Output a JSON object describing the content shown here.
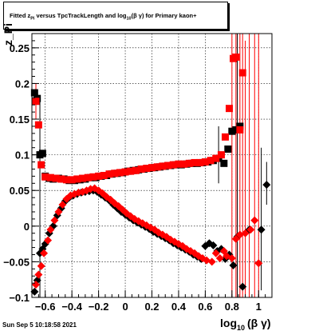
{
  "title": {
    "prefix": "Fitted  z",
    "sub1": "Pi",
    "middle": "  versus TpcTrackLength and log",
    "sub2": "10",
    "suffix": "(β  γ) for Primary kaon+"
  },
  "timestamp": "Sun Sep  5 10:18:58 2021",
  "x_axis_title": {
    "main": "log",
    "sub": "10",
    "rest": "(β γ)"
  },
  "y_axis_corner_label": "z_Pi",
  "chart_data": {
    "type": "scatter",
    "title": "Fitted z_Pi versus TpcTrackLength and log10(β γ) for Primary kaon+",
    "xlabel": "log10(β γ)",
    "ylabel": "",
    "xlim": [
      -0.7,
      1.1
    ],
    "ylim": [
      -0.1,
      0.27
    ],
    "grid": true,
    "x_ticks": [
      -0.6,
      -0.4,
      -0.2,
      0,
      0.2,
      0.4,
      0.6,
      0.8,
      1
    ],
    "x_tick_labels": [
      "−0.6",
      "−0.4",
      "−0.2",
      "0",
      "0.2",
      "0.4",
      "0.6",
      "0.8",
      "1"
    ],
    "y_ticks": [
      -0.1,
      -0.05,
      0,
      0.05,
      0.1,
      0.15,
      0.2,
      0.25
    ],
    "y_tick_labels": [
      "−0.1",
      "−0.05",
      "0",
      "0.05",
      "0.1",
      "0.15",
      "0.2",
      "0.25"
    ],
    "series": [
      {
        "color": "#000000",
        "marker": "square",
        "points": [
          [
            -0.68,
            0.187
          ],
          [
            -0.66,
            0.179
          ],
          [
            -0.64,
            0.1
          ],
          [
            -0.62,
            0.102
          ],
          [
            -0.6,
            0.07
          ],
          [
            -0.57,
            0.067
          ],
          [
            -0.54,
            0.066
          ],
          [
            -0.5,
            0.067
          ],
          [
            -0.46,
            0.066
          ],
          [
            -0.42,
            0.064
          ],
          [
            -0.38,
            0.064
          ],
          [
            -0.34,
            0.065
          ],
          [
            -0.3,
            0.066
          ],
          [
            -0.26,
            0.068
          ],
          [
            -0.22,
            0.068
          ],
          [
            -0.18,
            0.07
          ],
          [
            -0.14,
            0.071
          ],
          [
            -0.1,
            0.073
          ],
          [
            -0.06,
            0.074
          ],
          [
            -0.02,
            0.075
          ],
          [
            0.02,
            0.077
          ],
          [
            0.06,
            0.078
          ],
          [
            0.1,
            0.079
          ],
          [
            0.14,
            0.08
          ],
          [
            0.18,
            0.081
          ],
          [
            0.22,
            0.082
          ],
          [
            0.26,
            0.083
          ],
          [
            0.3,
            0.084
          ],
          [
            0.34,
            0.085
          ],
          [
            0.38,
            0.086
          ],
          [
            0.42,
            0.086
          ],
          [
            0.46,
            0.087
          ],
          [
            0.5,
            0.088
          ],
          [
            0.54,
            0.088
          ],
          [
            0.58,
            0.089
          ],
          [
            0.62,
            0.09
          ],
          [
            0.66,
            0.092
          ],
          [
            0.7,
            0.095
          ],
          [
            0.74,
            0.088
          ],
          [
            0.77,
            0.108
          ],
          [
            0.8,
            0.133
          ],
          [
            0.83,
            0.135
          ],
          [
            0.86,
            0.14
          ]
        ]
      },
      {
        "color": "#ff0000",
        "marker": "square",
        "points": [
          [
            -0.67,
            0.175
          ],
          [
            -0.65,
            0.142
          ],
          [
            -0.63,
            0.086
          ],
          [
            -0.6,
            0.069
          ],
          [
            -0.56,
            0.068
          ],
          [
            -0.52,
            0.067
          ],
          [
            -0.48,
            0.066
          ],
          [
            -0.44,
            0.065
          ],
          [
            -0.4,
            0.065
          ],
          [
            -0.36,
            0.066
          ],
          [
            -0.32,
            0.067
          ],
          [
            -0.28,
            0.068
          ],
          [
            -0.24,
            0.069
          ],
          [
            -0.2,
            0.07
          ],
          [
            -0.16,
            0.071
          ],
          [
            -0.12,
            0.073
          ],
          [
            -0.08,
            0.074
          ],
          [
            -0.04,
            0.075
          ],
          [
            0.0,
            0.076
          ],
          [
            0.04,
            0.077
          ],
          [
            0.08,
            0.078
          ],
          [
            0.12,
            0.08
          ],
          [
            0.16,
            0.081
          ],
          [
            0.2,
            0.082
          ],
          [
            0.24,
            0.083
          ],
          [
            0.28,
            0.084
          ],
          [
            0.32,
            0.085
          ],
          [
            0.36,
            0.086
          ],
          [
            0.4,
            0.087
          ],
          [
            0.44,
            0.087
          ],
          [
            0.48,
            0.088
          ],
          [
            0.52,
            0.089
          ],
          [
            0.56,
            0.089
          ],
          [
            0.6,
            0.09
          ],
          [
            0.64,
            0.092
          ],
          [
            0.68,
            0.095
          ],
          [
            0.72,
            0.1
          ],
          [
            0.75,
            0.125
          ],
          [
            0.78,
            0.165
          ],
          [
            0.81,
            0.235
          ],
          [
            0.83,
            0.237
          ],
          [
            0.86,
            0.135
          ],
          [
            0.88,
            0.215
          ]
        ]
      },
      {
        "color": "#000000",
        "marker": "diamond",
        "points": [
          [
            -0.68,
            -0.092
          ],
          [
            -0.66,
            -0.076
          ],
          [
            -0.64,
            -0.038
          ],
          [
            -0.62,
            -0.032
          ],
          [
            -0.6,
            -0.025
          ],
          [
            -0.57,
            -0.01
          ],
          [
            -0.54,
            0.0
          ],
          [
            -0.51,
            0.015
          ],
          [
            -0.48,
            0.025
          ],
          [
            -0.45,
            0.035
          ],
          [
            -0.42,
            0.04
          ],
          [
            -0.39,
            0.043
          ],
          [
            -0.36,
            0.045
          ],
          [
            -0.33,
            0.047
          ],
          [
            -0.3,
            0.048
          ],
          [
            -0.27,
            0.049
          ],
          [
            -0.24,
            0.05
          ],
          [
            -0.21,
            0.048
          ],
          [
            -0.18,
            0.044
          ],
          [
            -0.15,
            0.04
          ],
          [
            -0.12,
            0.036
          ],
          [
            -0.09,
            0.03
          ],
          [
            -0.06,
            0.025
          ],
          [
            -0.03,
            0.02
          ],
          [
            0.0,
            0.016
          ],
          [
            0.03,
            0.012
          ],
          [
            0.06,
            0.008
          ],
          [
            0.09,
            0.005
          ],
          [
            0.12,
            0.002
          ],
          [
            0.15,
            -0.001
          ],
          [
            0.18,
            -0.004
          ],
          [
            0.21,
            -0.008
          ],
          [
            0.24,
            -0.011
          ],
          [
            0.27,
            -0.014
          ],
          [
            0.3,
            -0.017
          ],
          [
            0.33,
            -0.02
          ],
          [
            0.36,
            -0.024
          ],
          [
            0.39,
            -0.027
          ],
          [
            0.42,
            -0.03
          ],
          [
            0.45,
            -0.033
          ],
          [
            0.48,
            -0.036
          ],
          [
            0.51,
            -0.04
          ],
          [
            0.54,
            -0.043
          ],
          [
            0.57,
            -0.046
          ],
          [
            0.6,
            -0.028
          ],
          [
            0.63,
            -0.024
          ],
          [
            0.66,
            -0.027
          ],
          [
            0.69,
            -0.035
          ],
          [
            0.72,
            -0.032
          ],
          [
            0.75,
            -0.046
          ],
          [
            0.78,
            -0.04
          ],
          [
            0.81,
            -0.055
          ],
          [
            0.84,
            -0.015
          ],
          [
            0.88,
            -0.085
          ],
          [
            0.93,
            -0.005
          ],
          [
            1.02,
            -0.005
          ],
          [
            1.06,
            0.058
          ]
        ]
      },
      {
        "color": "#ff0000",
        "marker": "diamond",
        "points": [
          [
            -0.67,
            -0.082
          ],
          [
            -0.65,
            -0.068
          ],
          [
            -0.63,
            -0.056
          ],
          [
            -0.61,
            -0.038
          ],
          [
            -0.58,
            -0.02
          ],
          [
            -0.56,
            -0.005
          ],
          [
            -0.53,
            0.008
          ],
          [
            -0.5,
            0.02
          ],
          [
            -0.47,
            0.03
          ],
          [
            -0.44,
            0.038
          ],
          [
            -0.41,
            0.043
          ],
          [
            -0.38,
            0.045
          ],
          [
            -0.35,
            0.047
          ],
          [
            -0.32,
            0.048
          ],
          [
            -0.29,
            0.05
          ],
          [
            -0.26,
            0.052
          ],
          [
            -0.23,
            0.053
          ],
          [
            -0.2,
            0.05
          ],
          [
            -0.17,
            0.046
          ],
          [
            -0.14,
            0.041
          ],
          [
            -0.11,
            0.037
          ],
          [
            -0.08,
            0.032
          ],
          [
            -0.05,
            0.028
          ],
          [
            -0.02,
            0.023
          ],
          [
            0.01,
            0.018
          ],
          [
            0.04,
            0.014
          ],
          [
            0.07,
            0.01
          ],
          [
            0.1,
            0.007
          ],
          [
            0.13,
            0.004
          ],
          [
            0.16,
            0.001
          ],
          [
            0.19,
            -0.002
          ],
          [
            0.22,
            -0.005
          ],
          [
            0.25,
            -0.009
          ],
          [
            0.28,
            -0.012
          ],
          [
            0.31,
            -0.015
          ],
          [
            0.34,
            -0.019
          ],
          [
            0.37,
            -0.022
          ],
          [
            0.4,
            -0.025
          ],
          [
            0.43,
            -0.028
          ],
          [
            0.46,
            -0.032
          ],
          [
            0.49,
            -0.035
          ],
          [
            0.52,
            -0.038
          ],
          [
            0.55,
            -0.042
          ],
          [
            0.58,
            -0.045
          ],
          [
            0.61,
            -0.048
          ],
          [
            0.65,
            -0.05
          ],
          [
            0.68,
            -0.038
          ],
          [
            0.71,
            -0.045
          ],
          [
            0.74,
            -0.035
          ],
          [
            0.76,
            -0.042
          ],
          [
            0.8,
            -0.045
          ],
          [
            0.83,
            -0.018
          ],
          [
            0.86,
            -0.012
          ],
          [
            0.9,
            -0.01
          ],
          [
            0.94,
            -0.005
          ],
          [
            0.97,
            0.008
          ],
          [
            1.0,
            -0.052
          ]
        ]
      }
    ],
    "error_bars": [
      {
        "color": "#ff0000",
        "x": 0.8,
        "ymin": -0.11,
        "ymax": 0.27
      },
      {
        "color": "#ff0000",
        "x": 0.83,
        "ymin": -0.11,
        "ymax": 0.27
      },
      {
        "color": "#ff0000",
        "x": 0.86,
        "ymin": -0.11,
        "ymax": 0.27
      },
      {
        "color": "#000000",
        "x": 0.84,
        "ymin": -0.11,
        "ymax": 0.27
      },
      {
        "color": "#ff0000",
        "x": 0.88,
        "ymin": -0.11,
        "ymax": 0.27
      },
      {
        "color": "#ff0000",
        "x": 0.9,
        "ymin": -0.11,
        "ymax": 0.26
      },
      {
        "color": "#ff0000",
        "x": 0.93,
        "ymin": -0.11,
        "ymax": 0.27
      },
      {
        "color": "#ff0000",
        "x": 0.97,
        "ymin": -0.11,
        "ymax": 0.27
      },
      {
        "color": "#ff0000",
        "x": 1.0,
        "ymin": -0.11,
        "ymax": 0.27
      },
      {
        "color": "#000000",
        "x": 1.02,
        "ymin": -0.09,
        "ymax": 0.11
      },
      {
        "color": "#000000",
        "x": 1.06,
        "ymin": 0.03,
        "ymax": 0.09
      },
      {
        "color": "#000000",
        "x": -0.64,
        "ymin": -0.1,
        "ymax": 0.18
      },
      {
        "color": "#ff0000",
        "x": -0.67,
        "ymin": 0.15,
        "ymax": 0.2
      },
      {
        "color": "#000000",
        "x": 0.7,
        "ymin": 0.06,
        "ymax": 0.14
      }
    ]
  }
}
